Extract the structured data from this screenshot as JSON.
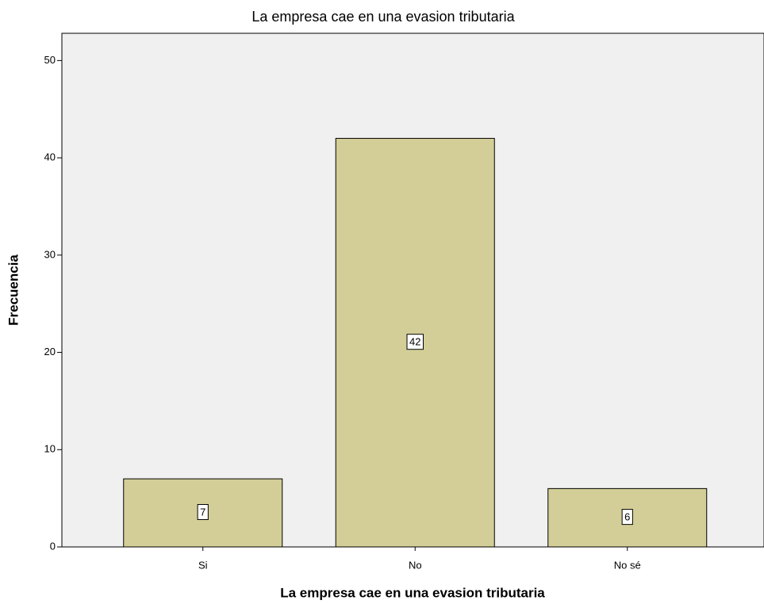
{
  "chart_data": {
    "type": "bar",
    "title": "La empresa cae en una evasion tributaria",
    "x_label": "La empresa cae en una evasion tributaria",
    "y_label": "Frecuencia",
    "categories": [
      "Si",
      "No",
      "No sé"
    ],
    "values": [
      7,
      42,
      6
    ],
    "color": "#d3ce97",
    "ylim": [
      0,
      52.8
    ],
    "yticks": [
      0,
      10,
      20,
      30,
      40,
      50
    ],
    "grid": false
  }
}
